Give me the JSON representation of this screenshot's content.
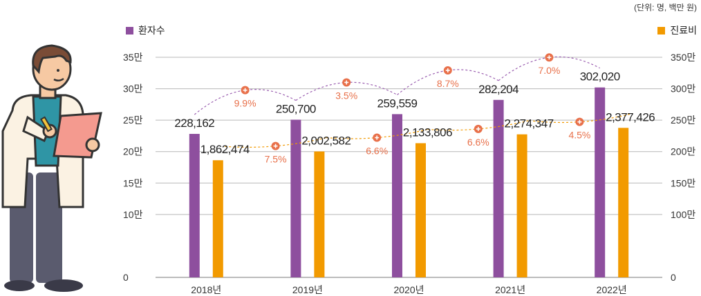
{
  "unit_note": "(단위: 명, 백만 원)",
  "colors": {
    "patients": "#8e4f9e",
    "cost": "#f29a00",
    "growth": "#e8704a",
    "grid": "#b7b7b7"
  },
  "chart_data": {
    "type": "bar",
    "categories": [
      "2018년",
      "2019년",
      "2020년",
      "2021년",
      "2022년"
    ],
    "series": [
      {
        "name": "환자수",
        "axis": "left",
        "values": [
          228162,
          250700,
          259559,
          282204,
          302020
        ],
        "labels": [
          "228,162",
          "250,700",
          "259,559",
          "282,204",
          "302,020"
        ]
      },
      {
        "name": "진료비",
        "axis": "right",
        "values": [
          1862474,
          2002582,
          2133806,
          2274347,
          2377426
        ],
        "labels": [
          "1,862,474",
          "2,002,582",
          "2,133,806",
          "2,274,347",
          "2,377,426"
        ]
      }
    ],
    "growth": {
      "patients": [
        "9.9%",
        "3.5%",
        "8.7%",
        "7.0%"
      ],
      "cost": [
        "7.5%",
        "6.6%",
        "6.6%",
        "4.5%"
      ]
    },
    "left_axis": {
      "ylim": [
        0,
        350000
      ],
      "ticks": [
        0,
        100000,
        150000,
        200000,
        250000,
        300000,
        350000
      ],
      "tick_labels": [
        "0",
        "10만",
        "15만",
        "20만",
        "25만",
        "30만",
        "35만"
      ]
    },
    "right_axis": {
      "ylim": [
        0,
        3500000
      ],
      "ticks": [
        0,
        1000000,
        1500000,
        2000000,
        2500000,
        3000000,
        3500000
      ],
      "tick_labels": [
        "0",
        "100만",
        "150만",
        "200만",
        "250만",
        "300만",
        "350만"
      ]
    },
    "grid": true,
    "legend": [
      "top-left",
      "top-right"
    ]
  }
}
